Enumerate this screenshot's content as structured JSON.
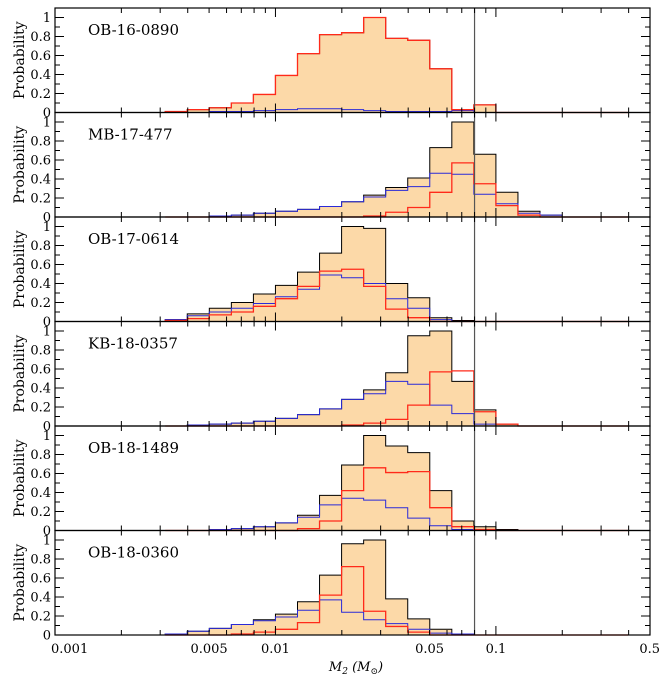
{
  "chart_data": {
    "type": "histogram-stack",
    "xlabel": "M₂ (M⊙)",
    "xlabel_parts": {
      "symbol": "M",
      "sub": "2",
      "unit_open": " (M",
      "unit_sub": "⊙",
      "unit_close": ")"
    },
    "xscale": "log",
    "xlim": [
      0.001,
      0.5
    ],
    "xtick_labels": [
      {
        "value": 0.001,
        "label": "0.001"
      },
      {
        "value": 0.005,
        "label": "0.005"
      },
      {
        "value": 0.01,
        "label": "0.01"
      },
      {
        "value": 0.05,
        "label": "0.05"
      },
      {
        "value": 0.1,
        "label": "0.1"
      },
      {
        "value": 0.5,
        "label": "0.5"
      }
    ],
    "ylabel": "Probability",
    "ylim": [
      0,
      1.1
    ],
    "ytick_labels": [
      {
        "value": 0,
        "label": "0"
      },
      {
        "value": 0.2,
        "label": "0.2"
      },
      {
        "value": 0.4,
        "label": "0.4"
      },
      {
        "value": 0.6,
        "label": "0.6"
      },
      {
        "value": 0.8,
        "label": "0.8"
      },
      {
        "value": 1,
        "label": "1"
      }
    ],
    "vertical_line_x": 0.08,
    "bin_log10_min": -2.5,
    "bin_log10_width": 0.1,
    "colors": {
      "total": "#000000",
      "fill": "#fcd9a8",
      "red": "#ff2a1a",
      "blue": "#2a2ad8",
      "vline": "#555555"
    },
    "panels": [
      {
        "label": "OB-16-0890",
        "total": [
          0.01,
          0.03,
          0.05,
          0.1,
          0.19,
          0.39,
          0.62,
          0.82,
          0.84,
          1.0,
          0.78,
          0.76,
          0.46,
          0.03,
          0.08,
          0,
          0,
          0,
          0,
          0,
          0
        ],
        "red": [
          0.01,
          0.03,
          0.05,
          0.1,
          0.19,
          0.39,
          0.62,
          0.82,
          0.84,
          1.0,
          0.78,
          0.76,
          0.46,
          0.03,
          0.08,
          0,
          0,
          0,
          0,
          0,
          0
        ],
        "blue": [
          0,
          0,
          0.01,
          0.01,
          0.02,
          0.03,
          0.04,
          0.04,
          0.03,
          0.02,
          0.01,
          0.01,
          0.01,
          0.02,
          0,
          0,
          0,
          0,
          0,
          0,
          0
        ]
      },
      {
        "label": "MB-17-477",
        "total": [
          0,
          0,
          0.01,
          0.02,
          0.04,
          0.06,
          0.08,
          0.11,
          0.16,
          0.23,
          0.31,
          0.41,
          0.73,
          1.0,
          0.66,
          0.26,
          0.06,
          0.02,
          0,
          0,
          0
        ],
        "red": [
          0,
          0,
          0,
          0,
          0,
          0,
          0,
          0,
          0,
          0.01,
          0.05,
          0.1,
          0.26,
          0.57,
          0.35,
          0.12,
          0.02,
          0,
          0,
          0,
          0
        ],
        "blue": [
          0,
          0,
          0.01,
          0.02,
          0.04,
          0.06,
          0.08,
          0.11,
          0.16,
          0.21,
          0.28,
          0.32,
          0.46,
          0.45,
          0.24,
          0.14,
          0.04,
          0.02,
          0,
          0,
          0
        ]
      },
      {
        "label": "OB-17-0614",
        "total": [
          0.02,
          0.08,
          0.14,
          0.2,
          0.29,
          0.38,
          0.52,
          0.72,
          1.0,
          0.98,
          0.4,
          0.25,
          0.04,
          0.01,
          0,
          0,
          0,
          0,
          0,
          0,
          0
        ],
        "red": [
          0.01,
          0.03,
          0.07,
          0.1,
          0.16,
          0.24,
          0.37,
          0.53,
          0.55,
          0.37,
          0.13,
          0.04,
          0,
          0,
          0,
          0,
          0,
          0,
          0,
          0,
          0
        ],
        "blue": [
          0.02,
          0.06,
          0.1,
          0.14,
          0.19,
          0.26,
          0.34,
          0.49,
          0.46,
          0.4,
          0.24,
          0.14,
          0.02,
          0,
          0,
          0,
          0,
          0,
          0,
          0,
          0
        ]
      },
      {
        "label": "KB-18-0357",
        "total": [
          0,
          0.01,
          0.02,
          0.03,
          0.05,
          0.08,
          0.12,
          0.18,
          0.28,
          0.38,
          0.56,
          0.95,
          1.0,
          0.47,
          0.17,
          0.02,
          0,
          0,
          0,
          0,
          0
        ],
        "red": [
          0,
          0,
          0,
          0,
          0,
          0,
          0,
          0,
          0.01,
          0.03,
          0.07,
          0.22,
          0.57,
          0.58,
          0.15,
          0.02,
          0,
          0,
          0,
          0,
          0
        ],
        "blue": [
          0,
          0.01,
          0.02,
          0.03,
          0.05,
          0.08,
          0.12,
          0.18,
          0.28,
          0.34,
          0.47,
          0.44,
          0.22,
          0.13,
          0.02,
          0,
          0,
          0,
          0,
          0,
          0
        ]
      },
      {
        "label": "OB-18-1489",
        "total": [
          0,
          0,
          0.01,
          0.02,
          0.04,
          0.08,
          0.16,
          0.37,
          0.69,
          1.0,
          0.89,
          0.82,
          0.42,
          0.1,
          0.04,
          0.01,
          0,
          0,
          0,
          0,
          0
        ],
        "red": [
          0,
          0,
          0,
          0,
          0,
          0,
          0.02,
          0.1,
          0.42,
          0.66,
          0.61,
          0.62,
          0.24,
          0.04,
          0.01,
          0,
          0,
          0,
          0,
          0,
          0
        ],
        "blue": [
          0,
          0,
          0.01,
          0.02,
          0.04,
          0.08,
          0.14,
          0.27,
          0.34,
          0.32,
          0.24,
          0.13,
          0.05,
          0.01,
          0,
          0,
          0,
          0,
          0,
          0,
          0
        ]
      },
      {
        "label": "OB-18-0360",
        "total": [
          0.01,
          0.04,
          0.07,
          0.11,
          0.16,
          0.22,
          0.35,
          0.63,
          0.96,
          1.0,
          0.38,
          0.17,
          0.06,
          0.01,
          0,
          0,
          0,
          0,
          0,
          0,
          0
        ],
        "red": [
          0,
          0,
          0,
          0.01,
          0.03,
          0.06,
          0.13,
          0.42,
          0.72,
          0.25,
          0.09,
          0.03,
          0,
          0,
          0,
          0,
          0,
          0,
          0,
          0,
          0
        ],
        "blue": [
          0.01,
          0.04,
          0.07,
          0.11,
          0.15,
          0.19,
          0.26,
          0.37,
          0.24,
          0.16,
          0.12,
          0.06,
          0.02,
          0.01,
          0,
          0,
          0,
          0,
          0,
          0,
          0
        ]
      }
    ]
  }
}
